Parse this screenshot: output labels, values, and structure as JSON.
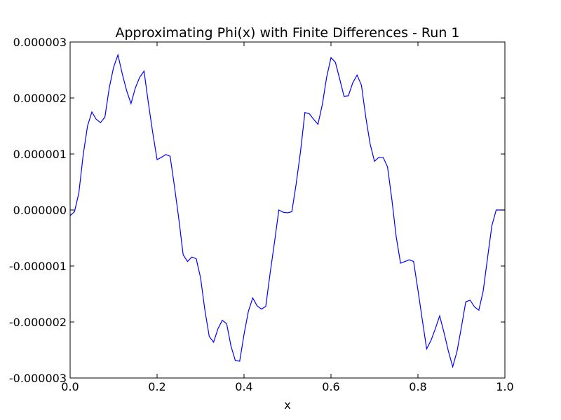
{
  "chart_data": {
    "type": "line",
    "title": "Approximating Phi(x) with Finite Differences - Run 1",
    "xlabel": "x",
    "ylabel": "",
    "xlim": [
      0.0,
      1.0
    ],
    "ylim": [
      -3e-06,
      3e-06
    ],
    "xticks": [
      0.0,
      0.2,
      0.4,
      0.6,
      0.8,
      1.0
    ],
    "xtick_labels": [
      "0.0",
      "0.2",
      "0.4",
      "0.6",
      "0.8",
      "1.0"
    ],
    "yticks": [
      3e-06,
      2e-06,
      1e-06,
      0.0,
      -1e-06,
      -2e-06,
      -3e-06
    ],
    "ytick_labels": [
      "0.000003",
      "0.000002",
      "0.000001",
      "0.000000",
      "-0.000001",
      "-0.000002",
      "-0.000003"
    ],
    "grid": false,
    "series": [
      {
        "color": "#0000ff",
        "x": [
          0.0,
          0.01,
          0.02,
          0.03,
          0.04,
          0.05,
          0.06,
          0.07,
          0.08,
          0.09,
          0.1,
          0.11,
          0.12,
          0.13,
          0.14,
          0.15,
          0.16,
          0.17,
          0.18,
          0.19,
          0.2,
          0.21,
          0.22,
          0.23,
          0.24,
          0.25,
          0.26,
          0.27,
          0.28,
          0.29,
          0.3,
          0.31,
          0.32,
          0.33,
          0.34,
          0.35,
          0.36,
          0.37,
          0.38,
          0.39,
          0.4,
          0.41,
          0.42,
          0.43,
          0.44,
          0.45,
          0.46,
          0.47,
          0.48,
          0.49,
          0.5,
          0.51,
          0.52,
          0.53,
          0.54,
          0.55,
          0.56,
          0.57,
          0.58,
          0.59,
          0.6,
          0.61,
          0.62,
          0.63,
          0.64,
          0.65,
          0.66,
          0.67,
          0.68,
          0.69,
          0.7,
          0.71,
          0.72,
          0.73,
          0.74,
          0.75,
          0.76,
          0.77,
          0.78,
          0.79,
          0.8,
          0.81,
          0.82,
          0.83,
          0.84,
          0.85,
          0.86,
          0.87,
          0.88,
          0.89,
          0.9,
          0.91,
          0.92,
          0.93,
          0.94,
          0.95,
          0.96,
          0.97,
          0.98,
          0.99,
          1.0
        ],
        "y": [
          -1e-07,
          -3e-08,
          3e-07,
          9.8e-07,
          1.5e-06,
          1.75e-06,
          1.62e-06,
          1.56e-06,
          1.66e-06,
          2.18e-06,
          2.55e-06,
          2.77e-06,
          2.43e-06,
          2.13e-06,
          1.9e-06,
          2.18e-06,
          2.37e-06,
          2.48e-06,
          1.91e-06,
          1.38e-06,
          9e-07,
          9.4e-07,
          9.9e-07,
          9.6e-07,
          4.2e-07,
          -1.6e-07,
          -8e-07,
          -9.2e-07,
          -8.4e-07,
          -8.7e-07,
          -1.21e-06,
          -1.79e-06,
          -2.26e-06,
          -2.36e-06,
          -2.12e-06,
          -1.97e-06,
          -2.03e-06,
          -2.43e-06,
          -2.69e-06,
          -2.7e-06,
          -2.22e-06,
          -1.81e-06,
          -1.57e-06,
          -1.71e-06,
          -1.77e-06,
          -1.72e-06,
          -1.13e-06,
          -5.8e-07,
          0.0,
          -4e-08,
          -5e-08,
          -3e-08,
          4.7e-07,
          1.05e-06,
          1.74e-06,
          1.72e-06,
          1.62e-06,
          1.53e-06,
          1.88e-06,
          2.37e-06,
          2.72e-06,
          2.64e-06,
          2.34e-06,
          2.03e-06,
          2.04e-06,
          2.27e-06,
          2.41e-06,
          2.23e-06,
          1.66e-06,
          1.18e-06,
          8.7e-07,
          9.4e-07,
          9.4e-07,
          7.7e-07,
          1.9e-07,
          -4.8e-07,
          -9.5e-07,
          -9.2e-07,
          -8.9e-07,
          -9.2e-07,
          -1.43e-06,
          -1.96e-06,
          -2.48e-06,
          -2.33e-06,
          -2.12e-06,
          -1.89e-06,
          -2.19e-06,
          -2.52e-06,
          -2.8e-06,
          -2.52e-06,
          -2.09e-06,
          -1.64e-06,
          -1.61e-06,
          -1.73e-06,
          -1.79e-06,
          -1.45e-06,
          -8.6e-07,
          -2.8e-07,
          0.0,
          0.0,
          0.0
        ]
      }
    ]
  }
}
